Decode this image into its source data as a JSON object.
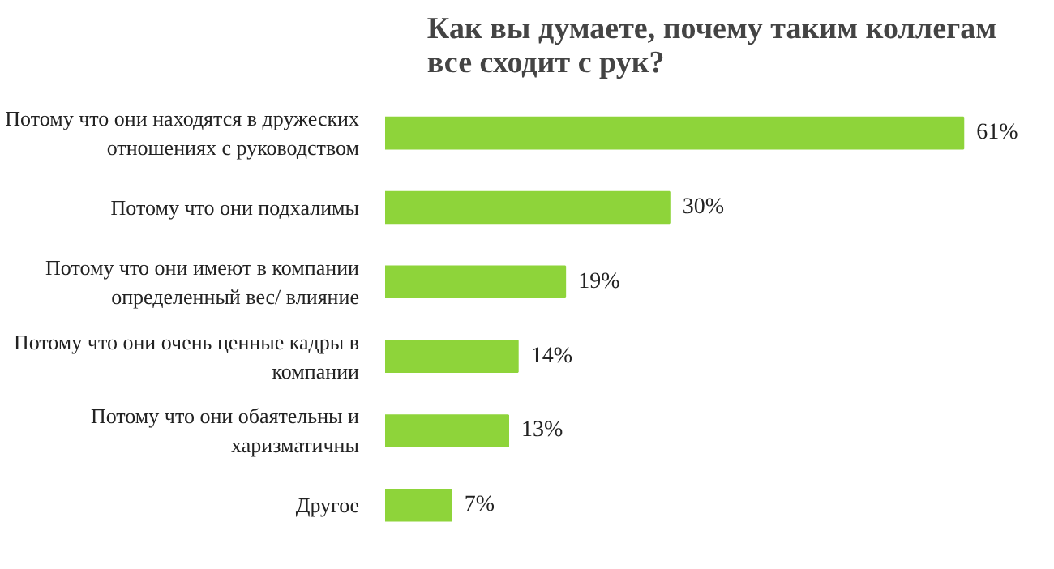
{
  "chart_data": {
    "type": "bar",
    "orientation": "horizontal",
    "title": "Как вы думаете, почему таким коллегам\nвсе сходит с рук?",
    "categories": [
      "Потому что они находятся в дружеских отношениях с руководством",
      "Потому что они подхалимы",
      "Потому что они имеют в компании определенный вес/ влияние",
      "Потому что они очень ценные кадры в компании",
      "Потому что они обаятельны и харизматичны",
      "Другое"
    ],
    "values": [
      61,
      30,
      19,
      14,
      13,
      7
    ],
    "value_labels": [
      "61%",
      "30%",
      "19%",
      "14%",
      "13%",
      "7%"
    ],
    "color": "#8ed43a",
    "grid": false
  }
}
